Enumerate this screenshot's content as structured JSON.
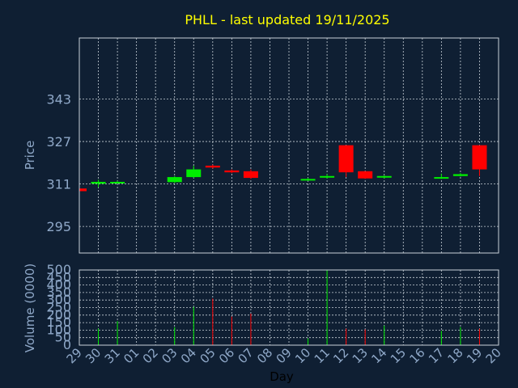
{
  "title": "PHLL - last updated 19/11/2025",
  "colors": {
    "background": "#0f1f33",
    "up": "#00ee00",
    "down": "#ff0000",
    "title": "#ffff00",
    "axis_text": "#8fa8c8",
    "grid": "#c8d0d8"
  },
  "chart_data": [
    {
      "type": "candlestick",
      "ylabel": "Price",
      "ylim": [
        285,
        366
      ],
      "yticks": [
        295,
        311,
        327,
        343
      ],
      "grid": true,
      "categories": [
        "29",
        "30",
        "31",
        "01",
        "02",
        "03",
        "04",
        "05",
        "06",
        "07",
        "08",
        "09",
        "10",
        "11",
        "12",
        "13",
        "14",
        "15",
        "16",
        "17",
        "18",
        "19",
        "20"
      ],
      "candles": [
        {
          "x": "29",
          "open": 309.3,
          "close": 308.3,
          "high": 309.3,
          "low": 308.3
        },
        {
          "x": "30",
          "open": 311.1,
          "close": 311.8,
          "high": 312.6,
          "low": 309.8
        },
        {
          "x": "31",
          "open": 311.3,
          "close": 311.8,
          "high": 312.2,
          "low": 311.1
        },
        {
          "x": "03",
          "open": 311.7,
          "close": 313.6,
          "high": 314.0,
          "low": 311.3
        },
        {
          "x": "04",
          "open": 313.6,
          "close": 316.5,
          "high": 317.9,
          "low": 313.3
        },
        {
          "x": "05",
          "open": 317.9,
          "close": 317.2,
          "high": 318.3,
          "low": 316.8
        },
        {
          "x": "06",
          "open": 316.1,
          "close": 315.4,
          "high": 316.5,
          "low": 315.1
        },
        {
          "x": "07",
          "open": 315.8,
          "close": 313.3,
          "high": 316.5,
          "low": 312.9
        },
        {
          "x": "10",
          "open": 312.6,
          "close": 312.9,
          "high": 313.3,
          "low": 312.2
        },
        {
          "x": "11",
          "open": 313.6,
          "close": 314.0,
          "high": 314.7,
          "low": 313.1
        },
        {
          "x": "12",
          "open": 325.6,
          "close": 315.4,
          "high": 325.6,
          "low": 313.6
        },
        {
          "x": "13",
          "open": 315.8,
          "close": 313.1,
          "high": 315.8,
          "low": 312.9
        },
        {
          "x": "14",
          "open": 313.6,
          "close": 314.0,
          "high": 314.3,
          "low": 313.1
        },
        {
          "x": "17",
          "open": 313.1,
          "close": 313.6,
          "high": 314.9,
          "low": 312.9
        },
        {
          "x": "18",
          "open": 314.0,
          "close": 314.7,
          "high": 315.1,
          "low": 313.8
        },
        {
          "x": "19",
          "open": 325.6,
          "close": 316.5,
          "high": 325.6,
          "low": 314.0
        }
      ]
    },
    {
      "type": "bar",
      "ylabel": "Volume (0000)",
      "xlabel": "Day",
      "ylim": [
        0,
        500
      ],
      "yticks": [
        0,
        50,
        100,
        150,
        200,
        250,
        300,
        350,
        400,
        450,
        500
      ],
      "grid": true,
      "categories": [
        "29",
        "30",
        "31",
        "01",
        "02",
        "03",
        "04",
        "05",
        "06",
        "07",
        "08",
        "09",
        "10",
        "11",
        "12",
        "13",
        "14",
        "15",
        "16",
        "17",
        "18",
        "19",
        "20"
      ],
      "values": [
        {
          "x": "29",
          "value": 0,
          "dir": "down"
        },
        {
          "x": "30",
          "value": 110,
          "dir": "up"
        },
        {
          "x": "31",
          "value": 160,
          "dir": "up"
        },
        {
          "x": "03",
          "value": 120,
          "dir": "up"
        },
        {
          "x": "04",
          "value": 255,
          "dir": "up"
        },
        {
          "x": "05",
          "value": 310,
          "dir": "down"
        },
        {
          "x": "06",
          "value": 190,
          "dir": "down"
        },
        {
          "x": "07",
          "value": 210,
          "dir": "down"
        },
        {
          "x": "10",
          "value": 45,
          "dir": "up"
        },
        {
          "x": "11",
          "value": 500,
          "dir": "up"
        },
        {
          "x": "12",
          "value": 110,
          "dir": "down"
        },
        {
          "x": "13",
          "value": 105,
          "dir": "down"
        },
        {
          "x": "14",
          "value": 130,
          "dir": "up"
        },
        {
          "x": "17",
          "value": 95,
          "dir": "up"
        },
        {
          "x": "18",
          "value": 120,
          "dir": "up"
        },
        {
          "x": "19",
          "value": 110,
          "dir": "down"
        }
      ]
    }
  ]
}
